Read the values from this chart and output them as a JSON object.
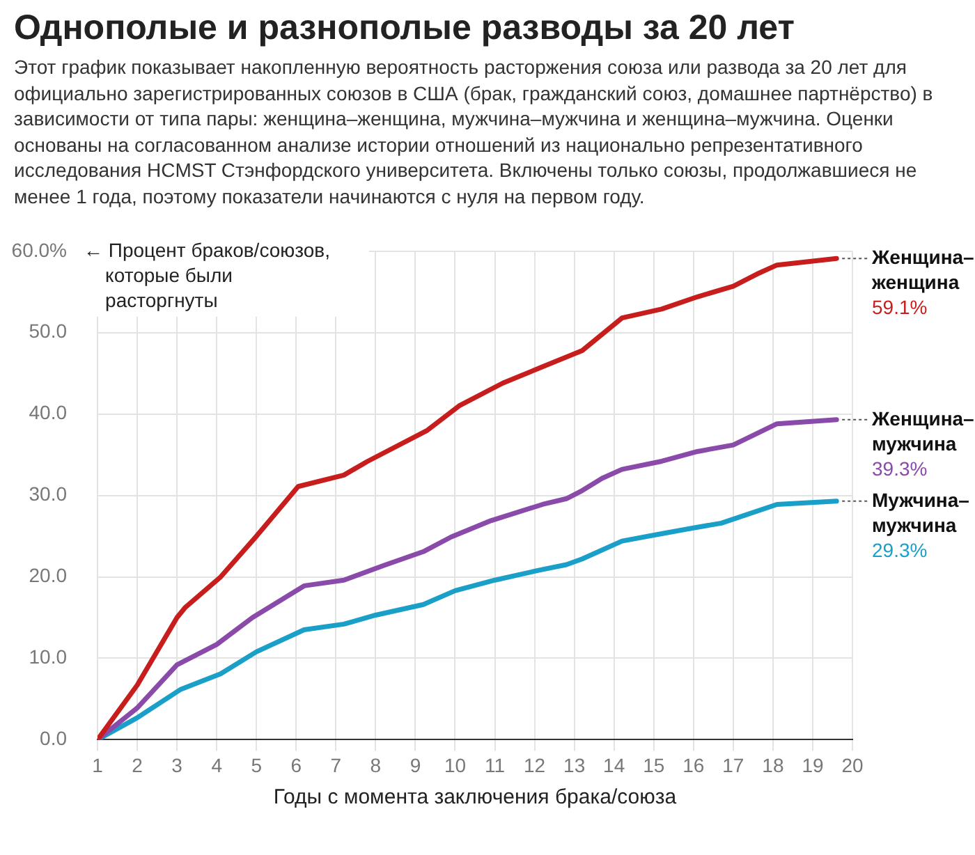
{
  "chart_data": {
    "type": "line",
    "title": "Однополые и разнополые разводы за 20 лет",
    "subtitle": "Этот график показывает накопленную вероятность расторжения союза или развода за 20 лет для официально зарегистрированных союзов в США (брак, гражданский союз, домашнее партнёрство) в зависимости от типа пары: женщина–женщина, мужчина–мужчина и женщина–мужчина. Оценки основаны на согласованном анализе истории отношений из национально репрезентативного исследования HCMST Стэнфордского университета. Включены только союзы, продолжавшиеся не менее 1 года, поэтому показатели начинаются с нуля на первом году.",
    "xlabel": "Годы с момента заключения брака/союза",
    "annotations": [
      "← Процент браков/союзов, которые были расторгнуты"
    ],
    "xlim": [
      1,
      20
    ],
    "xticks": [
      1,
      2,
      3,
      4,
      5,
      6,
      7,
      8,
      9,
      10,
      11,
      12,
      13,
      14,
      15,
      16,
      17,
      18,
      19,
      20
    ],
    "ylim": [
      0,
      60
    ],
    "yticks": [
      {
        "value": 0,
        "label": "0.0"
      },
      {
        "value": 10,
        "label": "10.0"
      },
      {
        "value": 20,
        "label": "20.0"
      },
      {
        "value": 30,
        "label": "30.0"
      },
      {
        "value": 40,
        "label": "40.0"
      },
      {
        "value": 50,
        "label": "50.0"
      },
      {
        "value": 60,
        "label": "60.0%"
      }
    ],
    "grid": true,
    "legend": false,
    "marker": "none",
    "line_style": "solid",
    "series": [
      {
        "name": "Женщина–женщина",
        "color": "#c71e1d",
        "x": [
          1,
          2,
          3,
          3.2,
          4.1,
          5,
          6.05,
          7.2,
          7.8,
          9.3,
          10.1,
          11.2,
          12.2,
          13.2,
          14.2,
          15.2,
          16.1,
          17,
          17.6,
          18.1,
          19.6
        ],
        "values": [
          0,
          6.7,
          15,
          16.2,
          20,
          25,
          31.1,
          32.5,
          34.2,
          38,
          41,
          43.8,
          45.8,
          47.8,
          51.8,
          52.9,
          54.4,
          55.7,
          57.2,
          58.3,
          59.1
        ],
        "value_labels": [
          null,
          null,
          null,
          null,
          null,
          null,
          null,
          null,
          null,
          null,
          null,
          null,
          null,
          null,
          null,
          null,
          null,
          null,
          null,
          null,
          "59.1%"
        ]
      },
      {
        "name": "Женщина–мужчина",
        "color": "#8a4aaa",
        "x": [
          1,
          2,
          3,
          4,
          4.9,
          6.2,
          7.2,
          8.2,
          9.2,
          9.9,
          10.9,
          12.2,
          12.8,
          13.2,
          13.7,
          14.2,
          15.2,
          16.1,
          17,
          18.1,
          19.6
        ],
        "values": [
          0,
          3.9,
          9.2,
          11.7,
          15,
          18.9,
          19.6,
          21.4,
          23.1,
          24.9,
          26.9,
          28.9,
          29.6,
          30.6,
          32.1,
          33.2,
          34.2,
          35.4,
          36.2,
          38.8,
          39.3
        ],
        "value_labels": [
          null,
          null,
          null,
          null,
          null,
          null,
          null,
          null,
          null,
          null,
          null,
          null,
          null,
          null,
          null,
          null,
          null,
          null,
          null,
          null,
          "39.3%"
        ]
      },
      {
        "name": "Мужчина–мужчина",
        "color": "#1aa0c8",
        "x": [
          1,
          2,
          3.1,
          4.1,
          5,
          6.2,
          7.2,
          8,
          9.2,
          10,
          11,
          12.1,
          12.8,
          13.2,
          14.2,
          15.2,
          16.1,
          16.7,
          18.1,
          19.6
        ],
        "values": [
          0,
          2.7,
          6.2,
          8.1,
          10.8,
          13.5,
          14.2,
          15.3,
          16.6,
          18.3,
          19.6,
          20.8,
          21.5,
          22.2,
          24.4,
          25.3,
          26.1,
          26.6,
          28.9,
          29.3
        ],
        "value_labels": [
          null,
          null,
          null,
          null,
          null,
          null,
          null,
          null,
          null,
          null,
          null,
          null,
          null,
          null,
          null,
          null,
          null,
          null,
          null,
          "29.3%"
        ]
      }
    ]
  }
}
